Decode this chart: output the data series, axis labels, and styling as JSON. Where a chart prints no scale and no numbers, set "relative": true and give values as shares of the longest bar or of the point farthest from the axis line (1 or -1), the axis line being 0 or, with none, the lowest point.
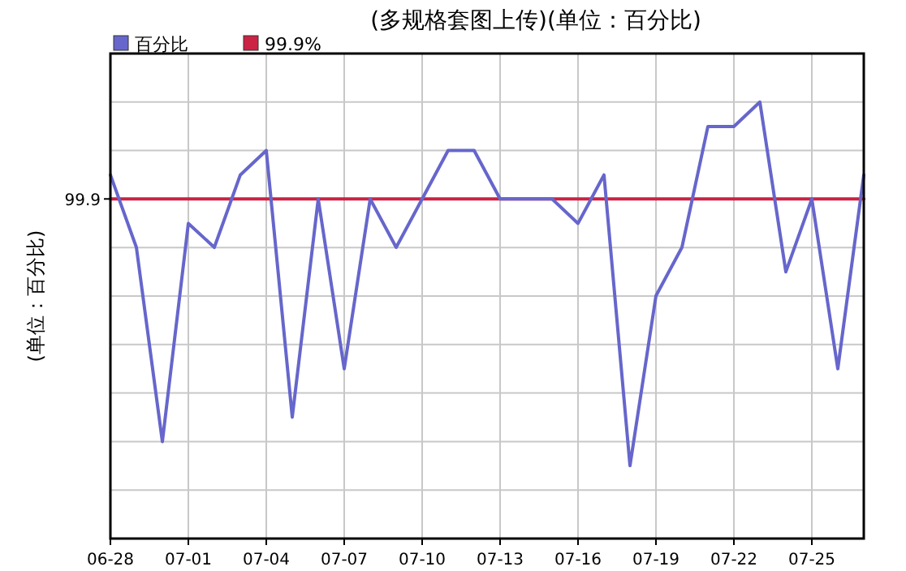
{
  "chart_data": {
    "type": "line",
    "title": "(多规格套图上传)(单位：百分比)",
    "ylabel": "(单位：百分比)",
    "relative": true,
    "grid": true,
    "legend": "top left",
    "marker": "none",
    "line_style": "solid",
    "categories": [
      "06-28",
      null,
      null,
      "07-01",
      null,
      null,
      "07-04",
      null,
      null,
      "07-07",
      null,
      null,
      "07-10",
      null,
      null,
      "07-13",
      null,
      null,
      "07-16",
      null,
      null,
      "07-19",
      null,
      null,
      "07-22",
      null,
      null,
      "07-25",
      null,
      null
    ],
    "series": [
      {
        "name": "百分比",
        "color": "#6666cc",
        "values": [
          0.833,
          0.667,
          0.222,
          0.722,
          0.667,
          0.833,
          0.889,
          0.278,
          0.778,
          0.389,
          0.778,
          0.667,
          0.778,
          0.889,
          0.889,
          0.778,
          0.778,
          0.778,
          0.722,
          0.833,
          0.167,
          0.556,
          0.667,
          0.944,
          0.944,
          1,
          0.611,
          0.778,
          0.389,
          0.833
        ]
      },
      {
        "name": "99.9%",
        "color": "#cc2244",
        "values": [
          0.778,
          0.778,
          0.778,
          0.778,
          0.778,
          0.778,
          0.778,
          0.778,
          0.778,
          0.778,
          0.778,
          0.778,
          0.778,
          0.778,
          0.778,
          0.778,
          0.778,
          0.778,
          0.778,
          0.778,
          0.778,
          0.778,
          0.778,
          0.778,
          0.778,
          0.778,
          0.778,
          0.778,
          0.778,
          0.778
        ]
      }
    ],
    "annotations": [
      "99.9"
    ]
  }
}
